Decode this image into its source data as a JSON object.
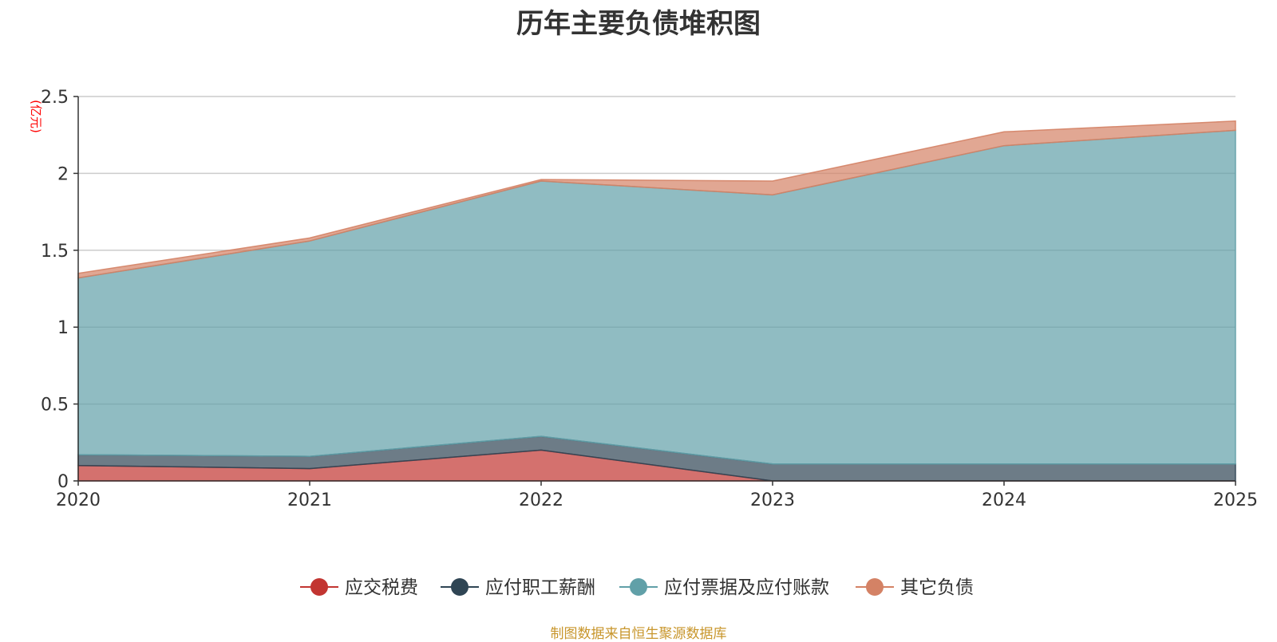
{
  "chart_data": {
    "type": "area",
    "stacked": true,
    "title": "历年主要负债堆积图",
    "unit_label": "(亿元)",
    "x": [
      "2020",
      "2021",
      "2022",
      "2023",
      "2024",
      "2025"
    ],
    "y_ticks": [
      "0",
      "0.5",
      "1",
      "1.5",
      "2",
      "2.5"
    ],
    "ylim": [
      0,
      2.5
    ],
    "series": [
      {
        "name": "应交税费",
        "color": "#c23531",
        "values": [
          0.1,
          0.08,
          0.2,
          0.0,
          0.0,
          0.0
        ]
      },
      {
        "name": "应付职工薪酬",
        "color": "#2f4554",
        "values": [
          0.07,
          0.08,
          0.09,
          0.11,
          0.11,
          0.11
        ]
      },
      {
        "name": "应付票据及应付账款",
        "color": "#61a0a8",
        "values": [
          1.15,
          1.4,
          1.66,
          1.75,
          2.07,
          2.17
        ]
      },
      {
        "name": "其它负债",
        "color": "#d48265",
        "values": [
          0.03,
          0.02,
          0.01,
          0.09,
          0.09,
          0.06
        ]
      }
    ],
    "legend_position": "bottom"
  },
  "source_text": "制图数据来自恒生聚源数据库"
}
